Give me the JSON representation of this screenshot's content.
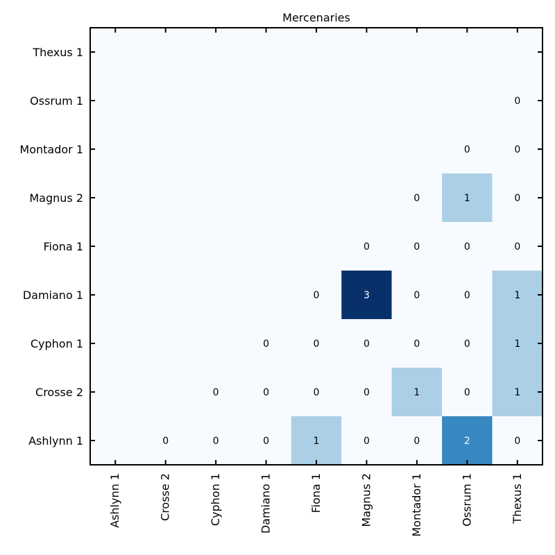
{
  "chart_data": {
    "type": "heatmap",
    "title": "Mercenaries",
    "x_categories": [
      "Ashlynn 1",
      "Crosse 2",
      "Cyphon 1",
      "Damiano 1",
      "Fiona 1",
      "Magnus 2",
      "Montador 1",
      "Ossrum 1",
      "Thexus 1"
    ],
    "y_categories": [
      "Ashlynn 1",
      "Crosse 2",
      "Cyphon 1",
      "Damiano 1",
      "Fiona 1",
      "Magnus 2",
      "Montador 1",
      "Ossrum 1",
      "Thexus 1"
    ],
    "cells": [
      {
        "x": "Crosse 2",
        "y": "Ashlynn 1",
        "value": 0
      },
      {
        "x": "Cyphon 1",
        "y": "Ashlynn 1",
        "value": 0
      },
      {
        "x": "Damiano 1",
        "y": "Ashlynn 1",
        "value": 0
      },
      {
        "x": "Fiona 1",
        "y": "Ashlynn 1",
        "value": 1
      },
      {
        "x": "Magnus 2",
        "y": "Ashlynn 1",
        "value": 0
      },
      {
        "x": "Montador 1",
        "y": "Ashlynn 1",
        "value": 0
      },
      {
        "x": "Ossrum 1",
        "y": "Ashlynn 1",
        "value": 2
      },
      {
        "x": "Thexus 1",
        "y": "Ashlynn 1",
        "value": 0
      },
      {
        "x": "Cyphon 1",
        "y": "Crosse 2",
        "value": 0
      },
      {
        "x": "Damiano 1",
        "y": "Crosse 2",
        "value": 0
      },
      {
        "x": "Fiona 1",
        "y": "Crosse 2",
        "value": 0
      },
      {
        "x": "Magnus 2",
        "y": "Crosse 2",
        "value": 0
      },
      {
        "x": "Montador 1",
        "y": "Crosse 2",
        "value": 1
      },
      {
        "x": "Ossrum 1",
        "y": "Crosse 2",
        "value": 0
      },
      {
        "x": "Thexus 1",
        "y": "Crosse 2",
        "value": 1
      },
      {
        "x": "Damiano 1",
        "y": "Cyphon 1",
        "value": 0
      },
      {
        "x": "Fiona 1",
        "y": "Cyphon 1",
        "value": 0
      },
      {
        "x": "Magnus 2",
        "y": "Cyphon 1",
        "value": 0
      },
      {
        "x": "Montador 1",
        "y": "Cyphon 1",
        "value": 0
      },
      {
        "x": "Ossrum 1",
        "y": "Cyphon 1",
        "value": 0
      },
      {
        "x": "Thexus 1",
        "y": "Cyphon 1",
        "value": 1
      },
      {
        "x": "Fiona 1",
        "y": "Damiano 1",
        "value": 0
      },
      {
        "x": "Magnus 2",
        "y": "Damiano 1",
        "value": 3
      },
      {
        "x": "Montador 1",
        "y": "Damiano 1",
        "value": 0
      },
      {
        "x": "Ossrum 1",
        "y": "Damiano 1",
        "value": 0
      },
      {
        "x": "Thexus 1",
        "y": "Damiano 1",
        "value": 1
      },
      {
        "x": "Magnus 2",
        "y": "Fiona 1",
        "value": 0
      },
      {
        "x": "Montador 1",
        "y": "Fiona 1",
        "value": 0
      },
      {
        "x": "Ossrum 1",
        "y": "Fiona 1",
        "value": 0
      },
      {
        "x": "Thexus 1",
        "y": "Fiona 1",
        "value": 0
      },
      {
        "x": "Montador 1",
        "y": "Magnus 2",
        "value": 0
      },
      {
        "x": "Ossrum 1",
        "y": "Magnus 2",
        "value": 1
      },
      {
        "x": "Thexus 1",
        "y": "Magnus 2",
        "value": 0
      },
      {
        "x": "Ossrum 1",
        "y": "Montador 1",
        "value": 0
      },
      {
        "x": "Thexus 1",
        "y": "Montador 1",
        "value": 0
      },
      {
        "x": "Thexus 1",
        "y": "Ossrum 1",
        "value": 0
      }
    ],
    "value_range": [
      0,
      3
    ],
    "colormap": [
      "#f7fbff",
      "#abd0e6",
      "#3787c0",
      "#08306b"
    ],
    "grid": false
  }
}
